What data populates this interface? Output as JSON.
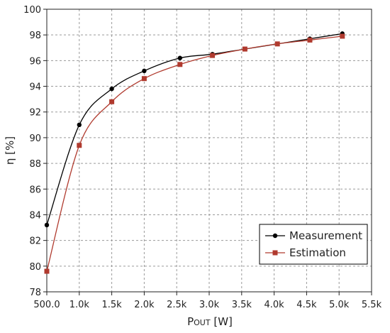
{
  "chart_data": {
    "type": "line",
    "xlabel": "P",
    "xlabel_sub": "OUT",
    "xlabel_unit": "[W]",
    "ylabel": "η [%]",
    "xlim": [
      500,
      5500
    ],
    "ylim": [
      78,
      100
    ],
    "x_ticks": [
      500,
      1000,
      1500,
      2000,
      2500,
      3000,
      3500,
      4000,
      4500,
      5000,
      5500
    ],
    "x_tick_labels": [
      "500.0",
      "1.0k",
      "1.5k",
      "2.0k",
      "2.5k",
      "3.0k",
      "3.5k",
      "4.0k",
      "4.5k",
      "5.0k",
      "5.5k"
    ],
    "y_ticks": [
      78,
      80,
      82,
      84,
      86,
      88,
      90,
      92,
      94,
      96,
      98,
      100
    ],
    "y_tick_labels": [
      "78",
      "80",
      "82",
      "84",
      "86",
      "88",
      "90",
      "92",
      "94",
      "96",
      "98",
      "100"
    ],
    "grid": true,
    "legend_position": "bottom-right",
    "series": [
      {
        "name": "Measurement",
        "color": "#000000",
        "marker": "circle",
        "x": [
          500,
          1000,
          1500,
          2000,
          2550,
          3050,
          3550,
          4050,
          4550,
          5050
        ],
        "y": [
          83.2,
          91.0,
          93.8,
          95.2,
          96.2,
          96.5,
          96.9,
          97.3,
          97.7,
          98.1
        ]
      },
      {
        "name": "Estimation",
        "color": "#b03a2e",
        "marker": "square",
        "x": [
          500,
          1000,
          1500,
          2000,
          2550,
          3050,
          3550,
          4050,
          4550,
          5050
        ],
        "y": [
          79.6,
          89.4,
          92.8,
          94.6,
          95.7,
          96.4,
          96.9,
          97.3,
          97.6,
          97.9
        ]
      }
    ]
  }
}
